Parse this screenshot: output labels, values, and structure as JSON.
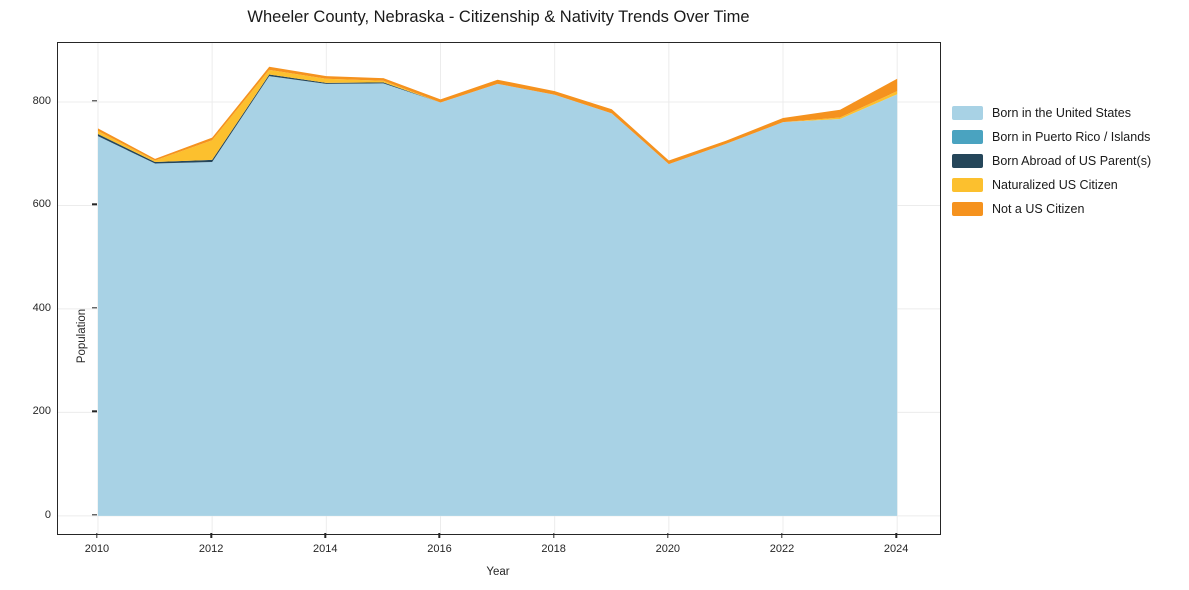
{
  "title": "Wheeler County, Nebraska - Citizenship & Nativity Trends Over Time",
  "chart_data": {
    "type": "area",
    "stacked": true,
    "title": "Wheeler County, Nebraska - Citizenship & Nativity Trends Over Time",
    "xlabel": "Year",
    "ylabel": "Population",
    "x": [
      2010,
      2011,
      2012,
      2013,
      2014,
      2015,
      2016,
      2017,
      2018,
      2019,
      2020,
      2021,
      2022,
      2023,
      2024
    ],
    "xticks": [
      2010,
      2012,
      2014,
      2016,
      2018,
      2020,
      2022,
      2024
    ],
    "yticks": [
      0,
      200,
      400,
      600,
      800
    ],
    "xlim": [
      2009.3,
      2024.75
    ],
    "ylim": [
      -35,
      914
    ],
    "grid": true,
    "legend_position": "right",
    "series": [
      {
        "name": "Born in the United States",
        "color": "#a8d2e5",
        "values": [
          734,
          681,
          684,
          850,
          835,
          836,
          799,
          835,
          814,
          778,
          680,
          719,
          761,
          767,
          815
        ]
      },
      {
        "name": "Born in Puerto Rico / Islands",
        "color": "#4aa3c0",
        "values": [
          0,
          0,
          0,
          0,
          0,
          0,
          0,
          0,
          0,
          0,
          0,
          0,
          0,
          0,
          0
        ]
      },
      {
        "name": "Born Abroad of US Parent(s)",
        "color": "#25465a",
        "values": [
          4,
          3,
          4,
          3,
          2,
          2,
          0,
          0,
          0,
          0,
          0,
          0,
          0,
          0,
          0
        ]
      },
      {
        "name": "Naturalized US Citizen",
        "color": "#fcc02e",
        "values": [
          6,
          3,
          38,
          9,
          8,
          3,
          0,
          0,
          0,
          0,
          0,
          0,
          0,
          3,
          6
        ]
      },
      {
        "name": "Not a US Citizen",
        "color": "#f5921e",
        "values": [
          5,
          3,
          5,
          6,
          5,
          5,
          6,
          8,
          7,
          8,
          7,
          6,
          8,
          15,
          24
        ]
      }
    ],
    "grid_color": "#ececec",
    "spine_color": "#262626"
  }
}
